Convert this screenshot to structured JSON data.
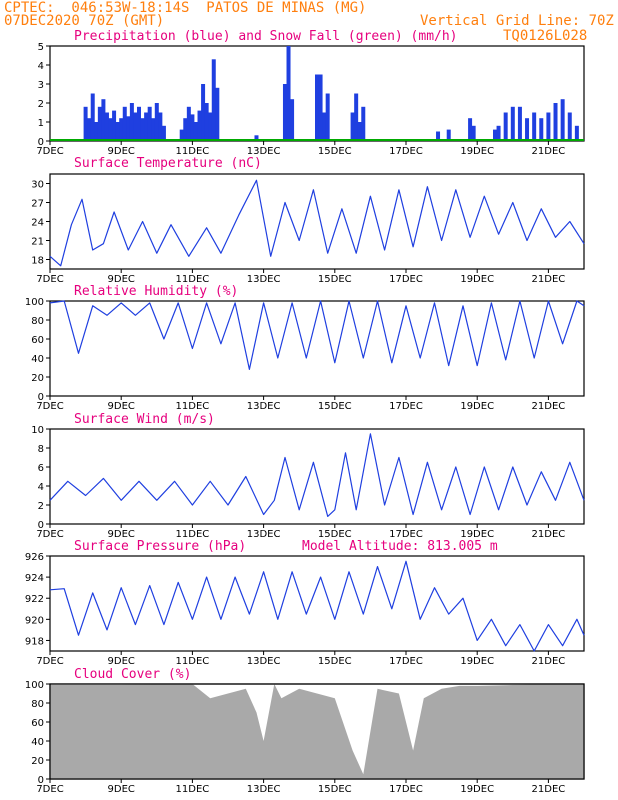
{
  "header": {
    "line1": "CPTEC:  046:53W-18:14S  PATOS DE MINAS (MG)",
    "line2": "07DEC2020 70Z (GMT)",
    "grid_note": "Vertical Grid Line: 70Z",
    "model_id": "TQ0126L028",
    "altitude_label": "Model Altitude: 813.005 m"
  },
  "colors": {
    "header": "#ff7f0e",
    "title": "#e6007e",
    "line": "#1f3fe0",
    "bar_blue": "#1f3fe0",
    "snow": "#00aa00",
    "cloud": "#a9a9a9"
  },
  "x_ticks": [
    "7DEC",
    "9DEC",
    "11DEC",
    "13DEC",
    "15DEC",
    "17DEC",
    "19DEC",
    "21DEC"
  ],
  "x_tick_days": [
    7,
    9,
    11,
    13,
    15,
    17,
    19,
    21
  ],
  "x_range_days": [
    7,
    22
  ],
  "chart_data": [
    {
      "type": "bar",
      "title": "Precipitation (blue) and Snow Fall (green) (mm/h)",
      "ylim": [
        0,
        5
      ],
      "yticks": [
        "0",
        "1",
        "2",
        "3",
        "4",
        "5"
      ],
      "series": [
        {
          "name": "Precipitation",
          "x": [
            8.0,
            8.1,
            8.2,
            8.3,
            8.4,
            8.5,
            8.6,
            8.7,
            8.8,
            8.9,
            9.0,
            9.1,
            9.2,
            9.3,
            9.4,
            9.5,
            9.6,
            9.7,
            9.8,
            9.9,
            10.0,
            10.1,
            10.2,
            10.7,
            10.8,
            10.9,
            11.0,
            11.1,
            11.2,
            11.3,
            11.4,
            11.5,
            11.6,
            11.7,
            12.8,
            13.6,
            13.7,
            13.8,
            14.5,
            14.6,
            14.7,
            14.8,
            15.5,
            15.6,
            15.7,
            15.8,
            17.9,
            18.2,
            18.8,
            18.9,
            19.5,
            19.6,
            19.8,
            20.0,
            20.2,
            20.4,
            20.6,
            20.8,
            21.0,
            21.2,
            21.4,
            21.6,
            21.8
          ],
          "values": [
            1.8,
            1.2,
            2.5,
            1.0,
            1.8,
            2.2,
            1.5,
            1.2,
            1.6,
            1.0,
            1.2,
            1.8,
            1.3,
            2.0,
            1.5,
            1.8,
            1.2,
            1.5,
            1.8,
            1.2,
            2.0,
            1.5,
            0.8,
            0.6,
            1.2,
            1.8,
            1.4,
            1.0,
            1.6,
            3.0,
            2.0,
            1.5,
            4.3,
            2.8,
            0.3,
            3.0,
            5.0,
            2.2,
            3.5,
            3.5,
            1.5,
            2.5,
            1.5,
            2.5,
            1.0,
            1.8,
            0.5,
            0.6,
            1.2,
            0.8,
            0.6,
            0.8,
            1.5,
            1.8,
            1.8,
            1.2,
            1.5,
            1.2,
            1.5,
            2.0,
            2.2,
            1.5,
            0.8
          ]
        },
        {
          "name": "Snow Fall",
          "x": [
            7,
            22
          ],
          "values": [
            0,
            0
          ]
        }
      ]
    },
    {
      "type": "line",
      "title": "Surface Temperature (nC)",
      "ylim": [
        16.5,
        31.5
      ],
      "yticks": [
        "18",
        "21",
        "24",
        "27",
        "30"
      ],
      "x": [
        7.0,
        7.3,
        7.6,
        7.9,
        8.2,
        8.5,
        8.8,
        9.2,
        9.6,
        10.0,
        10.4,
        10.9,
        11.4,
        11.8,
        12.3,
        12.8,
        13.2,
        13.6,
        14.0,
        14.4,
        14.8,
        15.2,
        15.6,
        16.0,
        16.4,
        16.8,
        17.2,
        17.6,
        18.0,
        18.4,
        18.8,
        19.2,
        19.6,
        20.0,
        20.4,
        20.8,
        21.2,
        21.6,
        22.0
      ],
      "y": [
        18.5,
        17.0,
        23.5,
        27.5,
        19.5,
        20.5,
        25.5,
        19.5,
        24.0,
        19.0,
        23.5,
        18.5,
        23.0,
        19.0,
        25.0,
        30.5,
        18.5,
        27.0,
        21.0,
        29.0,
        19.0,
        26.0,
        19.0,
        28.0,
        19.5,
        29.0,
        20.0,
        29.5,
        21.0,
        29.0,
        21.5,
        28.0,
        22.0,
        27.0,
        21.0,
        26.0,
        21.5,
        24.0,
        20.5
      ]
    },
    {
      "type": "line",
      "title": "Relative Humidity (%)",
      "ylim": [
        0,
        100
      ],
      "yticks": [
        "0",
        "20",
        "40",
        "60",
        "80",
        "100"
      ],
      "x": [
        7.0,
        7.4,
        7.8,
        8.2,
        8.6,
        9.0,
        9.4,
        9.8,
        10.2,
        10.6,
        11.0,
        11.4,
        11.8,
        12.2,
        12.6,
        13.0,
        13.4,
        13.8,
        14.2,
        14.6,
        15.0,
        15.4,
        15.8,
        16.2,
        16.6,
        17.0,
        17.4,
        17.8,
        18.2,
        18.6,
        19.0,
        19.4,
        19.8,
        20.2,
        20.6,
        21.0,
        21.4,
        21.8,
        22.0
      ],
      "y": [
        98,
        100,
        45,
        95,
        85,
        98,
        85,
        98,
        60,
        98,
        50,
        98,
        55,
        98,
        28,
        98,
        40,
        98,
        40,
        100,
        35,
        100,
        40,
        100,
        35,
        95,
        40,
        98,
        32,
        95,
        32,
        98,
        38,
        100,
        40,
        100,
        55,
        100,
        95
      ]
    },
    {
      "type": "line",
      "title": "Surface Wind (m/s)",
      "ylim": [
        0,
        10
      ],
      "yticks": [
        "0",
        "2",
        "4",
        "6",
        "8",
        "10"
      ],
      "x": [
        7.0,
        7.5,
        8.0,
        8.5,
        9.0,
        9.5,
        10.0,
        10.5,
        11.0,
        11.5,
        12.0,
        12.5,
        13.0,
        13.3,
        13.6,
        14.0,
        14.4,
        14.8,
        15.0,
        15.3,
        15.6,
        16.0,
        16.4,
        16.8,
        17.2,
        17.6,
        18.0,
        18.4,
        18.8,
        19.2,
        19.6,
        20.0,
        20.4,
        20.8,
        21.2,
        21.6,
        22.0
      ],
      "y": [
        2.5,
        4.5,
        3.0,
        4.8,
        2.5,
        4.5,
        2.5,
        4.5,
        2.0,
        4.5,
        2.0,
        5.0,
        1.0,
        2.5,
        7.0,
        1.5,
        6.5,
        0.8,
        1.5,
        7.5,
        1.5,
        9.5,
        2.0,
        7.0,
        1.0,
        6.5,
        1.5,
        6.0,
        1.0,
        6.0,
        1.5,
        6.0,
        2.0,
        5.5,
        2.5,
        6.5,
        2.5
      ]
    },
    {
      "type": "line",
      "title": "Surface Pressure (hPa)",
      "ylim": [
        917,
        926
      ],
      "yticks": [
        "918",
        "920",
        "922",
        "924",
        "926"
      ],
      "x": [
        7.0,
        7.4,
        7.8,
        8.2,
        8.6,
        9.0,
        9.4,
        9.8,
        10.2,
        10.6,
        11.0,
        11.4,
        11.8,
        12.2,
        12.6,
        13.0,
        13.4,
        13.8,
        14.2,
        14.6,
        15.0,
        15.4,
        15.8,
        16.2,
        16.6,
        17.0,
        17.4,
        17.8,
        18.2,
        18.6,
        19.0,
        19.4,
        19.8,
        20.2,
        20.6,
        21.0,
        21.4,
        21.8,
        22.0
      ],
      "y": [
        922.8,
        922.9,
        918.5,
        922.5,
        919.0,
        923.0,
        919.5,
        923.2,
        919.5,
        923.5,
        920.0,
        924.0,
        920.0,
        924.0,
        920.5,
        924.5,
        920.0,
        924.5,
        920.5,
        924.0,
        920.0,
        924.5,
        920.5,
        925.0,
        921.0,
        925.5,
        920.0,
        923.0,
        920.5,
        922.0,
        918.0,
        920.0,
        917.5,
        919.5,
        917.0,
        919.5,
        917.5,
        920.0,
        918.5
      ]
    },
    {
      "type": "area",
      "title": "Cloud Cover (%)",
      "ylim": [
        0,
        100
      ],
      "yticks": [
        "0",
        "20",
        "40",
        "60",
        "80",
        "100"
      ],
      "x": [
        7.0,
        9.0,
        11.0,
        11.5,
        12.0,
        12.5,
        12.8,
        13.0,
        13.3,
        13.5,
        14.0,
        14.5,
        15.0,
        15.5,
        15.8,
        16.2,
        16.8,
        17.2,
        17.5,
        18.0,
        18.5,
        19.0,
        20.0,
        21.0,
        22.0
      ],
      "y": [
        99,
        99,
        100,
        85,
        90,
        95,
        70,
        40,
        100,
        85,
        95,
        90,
        85,
        30,
        5,
        95,
        90,
        30,
        85,
        95,
        98,
        98,
        99,
        100,
        100
      ]
    }
  ]
}
